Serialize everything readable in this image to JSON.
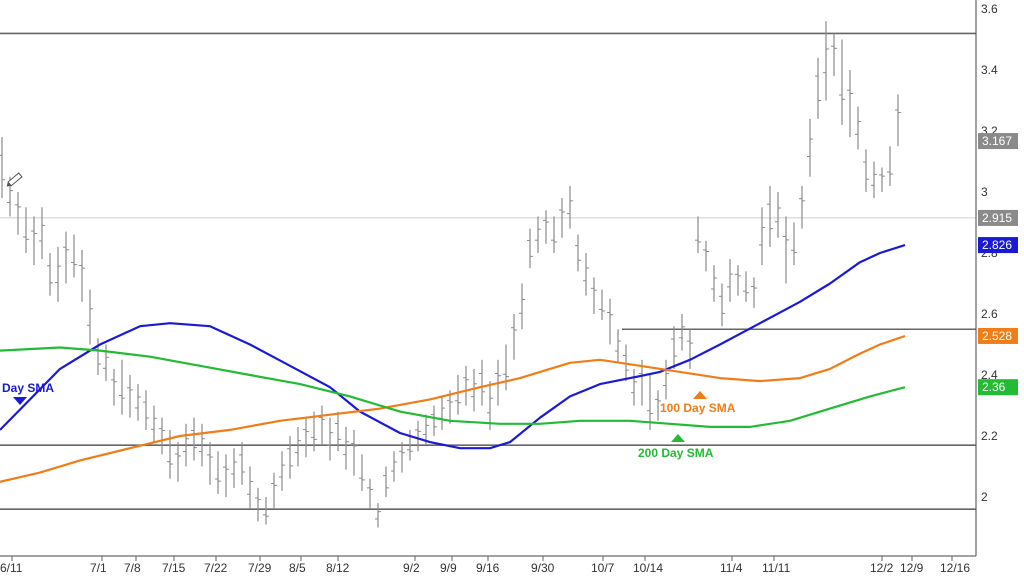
{
  "chart_data": {
    "type": "line",
    "x_labels": [
      "6/11",
      "7/1",
      "7/8",
      "7/15",
      "7/22",
      "7/29",
      "8/5",
      "8/12",
      "9/2",
      "9/9",
      "9/16",
      "9/30",
      "10/7",
      "10/14",
      "11/4",
      "11/11",
      "12/2",
      "12/9",
      "12/16"
    ],
    "y_ticks": [
      "3.6",
      "3.4",
      "3.2",
      "3",
      "2.8",
      "2.6",
      "2.4",
      "2.2",
      "2"
    ],
    "ylim": [
      1.8,
      3.65
    ],
    "price_tags": [
      {
        "label": "3.167",
        "value": 3.167,
        "color": "#8a8a8a"
      },
      {
        "label": "2.915",
        "value": 2.915,
        "color": "#8a8a8a"
      },
      {
        "label": "2.826",
        "value": 2.826,
        "color": "#1a1ad6"
      },
      {
        "label": "2.528",
        "value": 2.528,
        "color": "#f07d18"
      },
      {
        "label": "2.36",
        "value": 2.36,
        "color": "#22bb33"
      }
    ],
    "horizontal_lines": [
      3.52,
      2.915,
      2.55,
      2.17,
      1.96
    ],
    "series": [
      {
        "name": "Day SMA",
        "color": "#1a1ad6",
        "points": [
          [
            0,
            2.22
          ],
          [
            60,
            2.42
          ],
          [
            100,
            2.5
          ],
          [
            140,
            2.56
          ],
          [
            170,
            2.57
          ],
          [
            210,
            2.56
          ],
          [
            250,
            2.5
          ],
          [
            290,
            2.43
          ],
          [
            330,
            2.36
          ],
          [
            360,
            2.28
          ],
          [
            400,
            2.21
          ],
          [
            430,
            2.18
          ],
          [
            460,
            2.16
          ],
          [
            490,
            2.16
          ],
          [
            510,
            2.18
          ],
          [
            540,
            2.26
          ],
          [
            570,
            2.33
          ],
          [
            600,
            2.37
          ],
          [
            630,
            2.39
          ],
          [
            660,
            2.41
          ],
          [
            690,
            2.45
          ],
          [
            720,
            2.5
          ],
          [
            760,
            2.57
          ],
          [
            800,
            2.64
          ],
          [
            830,
            2.7
          ],
          [
            860,
            2.77
          ],
          [
            880,
            2.8
          ],
          [
            905,
            2.826
          ]
        ]
      },
      {
        "name": "100 Day SMA",
        "color": "#f07d18",
        "points": [
          [
            0,
            2.05
          ],
          [
            40,
            2.08
          ],
          [
            80,
            2.12
          ],
          [
            130,
            2.16
          ],
          [
            180,
            2.2
          ],
          [
            230,
            2.22
          ],
          [
            280,
            2.25
          ],
          [
            330,
            2.27
          ],
          [
            380,
            2.29
          ],
          [
            430,
            2.32
          ],
          [
            480,
            2.36
          ],
          [
            520,
            2.39
          ],
          [
            570,
            2.44
          ],
          [
            600,
            2.45
          ],
          [
            640,
            2.43
          ],
          [
            680,
            2.41
          ],
          [
            720,
            2.39
          ],
          [
            760,
            2.38
          ],
          [
            800,
            2.39
          ],
          [
            830,
            2.42
          ],
          [
            860,
            2.47
          ],
          [
            880,
            2.5
          ],
          [
            905,
            2.528
          ]
        ]
      },
      {
        "name": "200 Day SMA",
        "color": "#22bb33",
        "points": [
          [
            0,
            2.48
          ],
          [
            60,
            2.49
          ],
          [
            100,
            2.48
          ],
          [
            150,
            2.46
          ],
          [
            200,
            2.43
          ],
          [
            250,
            2.4
          ],
          [
            300,
            2.37
          ],
          [
            350,
            2.33
          ],
          [
            400,
            2.28
          ],
          [
            450,
            2.25
          ],
          [
            500,
            2.24
          ],
          [
            540,
            2.24
          ],
          [
            580,
            2.25
          ],
          [
            630,
            2.25
          ],
          [
            670,
            2.24
          ],
          [
            710,
            2.23
          ],
          [
            750,
            2.23
          ],
          [
            790,
            2.25
          ],
          [
            830,
            2.29
          ],
          [
            870,
            2.33
          ],
          [
            905,
            2.36
          ]
        ]
      }
    ],
    "bars": [
      [
        2,
        3.18,
        2.98
      ],
      [
        10,
        3.05,
        2.92
      ],
      [
        18,
        3,
        2.86
      ],
      [
        26,
        2.95,
        2.8
      ],
      [
        34,
        2.92,
        2.76
      ],
      [
        42,
        2.95,
        2.78
      ],
      [
        50,
        2.8,
        2.66
      ],
      [
        58,
        2.82,
        2.64
      ],
      [
        66,
        2.87,
        2.7
      ],
      [
        74,
        2.86,
        2.72
      ],
      [
        82,
        2.81,
        2.64
      ],
      [
        90,
        2.68,
        2.5
      ],
      [
        98,
        2.52,
        2.4
      ],
      [
        106,
        2.5,
        2.38
      ],
      [
        114,
        2.42,
        2.3
      ],
      [
        122,
        2.45,
        2.27
      ],
      [
        130,
        2.4,
        2.26
      ],
      [
        138,
        2.37,
        2.25
      ],
      [
        146,
        2.35,
        2.22
      ],
      [
        154,
        2.3,
        2.18
      ],
      [
        162,
        2.26,
        2.14
      ],
      [
        170,
        2.22,
        2.06
      ],
      [
        178,
        2.18,
        2.05
      ],
      [
        186,
        2.24,
        2.1
      ],
      [
        194,
        2.26,
        2.12
      ],
      [
        202,
        2.24,
        2.1
      ],
      [
        210,
        2.18,
        2.04
      ],
      [
        218,
        2.15,
        2.01
      ],
      [
        226,
        2.14,
        2
      ],
      [
        234,
        2.16,
        2.03
      ],
      [
        242,
        2.18,
        2.04
      ],
      [
        250,
        2.1,
        1.96
      ],
      [
        258,
        2.03,
        1.92
      ],
      [
        266,
        2,
        1.91
      ],
      [
        274,
        2.08,
        1.96
      ],
      [
        282,
        2.15,
        2.02
      ],
      [
        290,
        2.2,
        2.06
      ],
      [
        298,
        2.23,
        2.1
      ],
      [
        306,
        2.26,
        2.13
      ],
      [
        314,
        2.28,
        2.15
      ],
      [
        322,
        2.3,
        2.17
      ],
      [
        330,
        2.26,
        2.12
      ],
      [
        338,
        2.28,
        2.15
      ],
      [
        346,
        2.23,
        2.09
      ],
      [
        354,
        2.22,
        2.07
      ],
      [
        362,
        2.14,
        2.02
      ],
      [
        370,
        2.06,
        1.96
      ],
      [
        378,
        1.98,
        1.9
      ],
      [
        386,
        2.1,
        2
      ],
      [
        394,
        2.15,
        2.05
      ],
      [
        402,
        2.18,
        2.08
      ],
      [
        410,
        2.22,
        2.12
      ],
      [
        418,
        2.25,
        2.15
      ],
      [
        426,
        2.27,
        2.17
      ],
      [
        434,
        2.3,
        2.2
      ],
      [
        442,
        2.33,
        2.22
      ],
      [
        450,
        2.35,
        2.24
      ],
      [
        458,
        2.4,
        2.27
      ],
      [
        466,
        2.43,
        2.3
      ],
      [
        474,
        2.42,
        2.28
      ],
      [
        482,
        2.45,
        2.3
      ],
      [
        490,
        2.38,
        2.22
      ],
      [
        498,
        2.45,
        2.3
      ],
      [
        506,
        2.5,
        2.35
      ],
      [
        514,
        2.6,
        2.45
      ],
      [
        522,
        2.7,
        2.55
      ],
      [
        530,
        2.88,
        2.75
      ],
      [
        538,
        2.92,
        2.8
      ],
      [
        546,
        2.94,
        2.83
      ],
      [
        554,
        2.92,
        2.8
      ],
      [
        562,
        2.98,
        2.85
      ],
      [
        570,
        3.02,
        2.88
      ],
      [
        578,
        2.86,
        2.74
      ],
      [
        586,
        2.8,
        2.66
      ],
      [
        594,
        2.72,
        2.6
      ],
      [
        602,
        2.68,
        2.58
      ],
      [
        610,
        2.65,
        2.5
      ],
      [
        618,
        2.55,
        2.44
      ],
      [
        626,
        2.5,
        2.38
      ],
      [
        634,
        2.42,
        2.3
      ],
      [
        642,
        2.45,
        2.3
      ],
      [
        650,
        2.4,
        2.22
      ],
      [
        658,
        2.35,
        2.25
      ],
      [
        666,
        2.45,
        2.32
      ],
      [
        674,
        2.56,
        2.42
      ],
      [
        682,
        2.6,
        2.48
      ],
      [
        690,
        2.55,
        2.42
      ],
      [
        698,
        2.92,
        2.8
      ],
      [
        706,
        2.84,
        2.74
      ],
      [
        714,
        2.76,
        2.64
      ],
      [
        722,
        2.7,
        2.56
      ],
      [
        730,
        2.78,
        2.64
      ],
      [
        738,
        2.76,
        2.66
      ],
      [
        746,
        2.74,
        2.64
      ],
      [
        754,
        2.72,
        2.62
      ],
      [
        762,
        2.95,
        2.76
      ],
      [
        770,
        3.02,
        2.82
      ],
      [
        778,
        3,
        2.85
      ],
      [
        786,
        2.92,
        2.7
      ],
      [
        794,
        2.9,
        2.76
      ],
      [
        802,
        3.02,
        2.88
      ],
      [
        810,
        3.24,
        3.05
      ],
      [
        818,
        3.44,
        3.24
      ],
      [
        826,
        3.56,
        3.3
      ],
      [
        834,
        3.52,
        3.38
      ],
      [
        842,
        3.5,
        3.22
      ],
      [
        850,
        3.4,
        3.18
      ],
      [
        858,
        3.28,
        3.14
      ],
      [
        866,
        3.14,
        3
      ],
      [
        874,
        3.1,
        2.98
      ],
      [
        882,
        3.08,
        3
      ],
      [
        890,
        3.15,
        3.02
      ],
      [
        898,
        3.32,
        3.15
      ]
    ],
    "annotations": [
      {
        "text": "Day SMA",
        "color": "#1a1ad6",
        "marker": "down"
      },
      {
        "text": "100 Day SMA",
        "color": "#f07d18",
        "marker": "up"
      },
      {
        "text": "200 Day SMA",
        "color": "#22bb33",
        "marker": "up"
      }
    ],
    "grid": false,
    "colors": {
      "bar": "#8a8a8a",
      "hline": "#666666",
      "axis_bg": "#ffffff"
    }
  }
}
